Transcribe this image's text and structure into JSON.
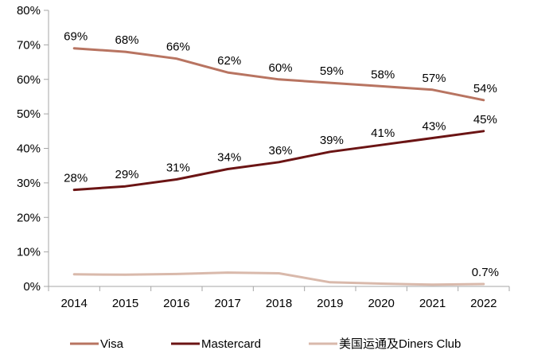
{
  "chart_data": {
    "type": "line",
    "title": "",
    "xlabel": "",
    "ylabel": "",
    "categories": [
      "2014",
      "2015",
      "2016",
      "2017",
      "2018",
      "2019",
      "2020",
      "2021",
      "2022"
    ],
    "ylim": [
      0,
      80
    ],
    "yticks": [
      "0%",
      "10%",
      "20%",
      "30%",
      "40%",
      "50%",
      "60%",
      "70%",
      "80%"
    ],
    "grid": false,
    "legend_position": "bottom",
    "series": [
      {
        "name": "Visa",
        "color": "#b87461",
        "values": [
          69,
          68,
          66,
          62,
          60,
          59,
          58,
          57,
          54
        ],
        "labels": [
          "69%",
          "68%",
          "66%",
          "62%",
          "60%",
          "59%",
          "58%",
          "57%",
          "54%"
        ]
      },
      {
        "name": "Mastercard",
        "color": "#6b1414",
        "values": [
          28,
          29,
          31,
          34,
          36,
          39,
          41,
          43,
          45
        ],
        "labels": [
          "28%",
          "29%",
          "31%",
          "34%",
          "36%",
          "39%",
          "41%",
          "43%",
          "45%"
        ]
      },
      {
        "name": "美国运通及Diners Club",
        "color": "#d9b9ab",
        "values": [
          3.5,
          3.4,
          3.6,
          4.0,
          3.8,
          1.2,
          0.8,
          0.5,
          0.7
        ],
        "labels": [
          "",
          "",
          "",
          "",
          "",
          "",
          "",
          "",
          "0.7%"
        ]
      }
    ]
  }
}
